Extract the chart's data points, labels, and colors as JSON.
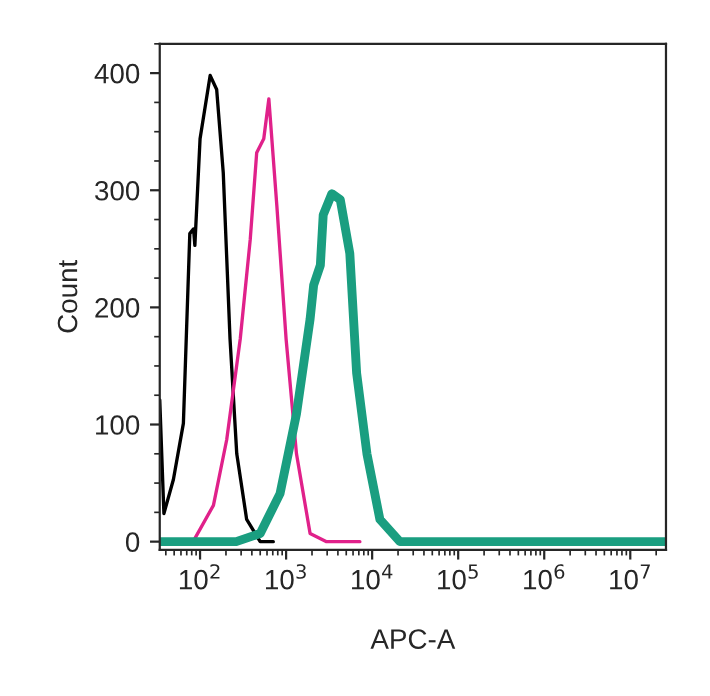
{
  "chart_data": {
    "type": "line",
    "xlabel": "APC-A",
    "ylabel": "Count",
    "log": "x",
    "grid": false,
    "legend": false,
    "marker": "none",
    "line_style": "solid",
    "xlim": [
      34,
      26000000
    ],
    "ylim": [
      -7,
      425
    ],
    "xticks": [
      {
        "value": 100,
        "label": "10$^{2}$"
      },
      {
        "value": 1000,
        "label": "10$^{3}$"
      },
      {
        "value": 10000,
        "label": "10$^{4}$"
      },
      {
        "value": 100000,
        "label": "10$^{5}$"
      },
      {
        "value": 1000000,
        "label": "10$^{6}$"
      },
      {
        "value": 10000000,
        "label": "10$^{7}$"
      }
    ],
    "yticks": [
      0,
      100,
      200,
      300,
      400
    ],
    "series": [
      {
        "color": "#000000",
        "x": [
          34,
          38,
          49,
          64,
          76,
          84,
          87,
          100,
          131,
          156,
          186,
          223,
          267,
          348,
          500,
          710
        ],
        "values": [
          121,
          24,
          53,
          101,
          263,
          267,
          253,
          344,
          398,
          386,
          315,
          173,
          75,
          19,
          0,
          0
        ]
      },
      {
        "color": "#e0218a",
        "x": [
          34,
          83,
          143,
          204,
          293,
          383,
          455,
          550,
          630,
          780,
          1000,
          1320,
          1900,
          2950,
          7200
        ],
        "values": [
          0,
          0,
          31,
          87,
          173,
          258,
          332,
          344,
          378,
          287,
          173,
          75,
          7,
          0,
          0
        ]
      },
      {
        "color": "#1a9e80",
        "x": [
          34,
          263,
          500,
          850,
          1320,
          1900,
          2090,
          2500,
          2700,
          3400,
          4260,
          5500,
          6600,
          8700,
          12300,
          21000,
          26000000
        ],
        "values": [
          0,
          0,
          7,
          41,
          109,
          190,
          219,
          236,
          279,
          297,
          292,
          246,
          144,
          75,
          19,
          0,
          0
        ]
      }
    ]
  }
}
